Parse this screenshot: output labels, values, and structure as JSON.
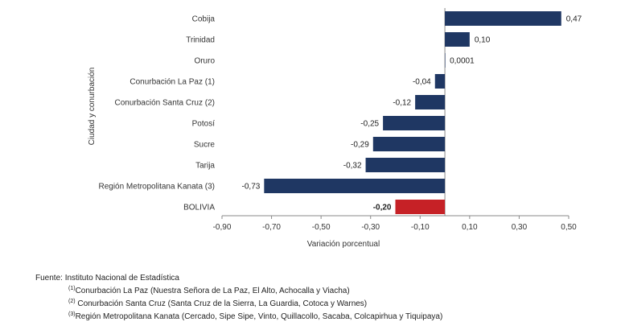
{
  "chart_data": {
    "type": "bar",
    "orientation": "horizontal",
    "categories": [
      "Cobija",
      "Trinidad",
      "Oruro",
      "Conurbación La Paz (1)",
      "Conurbación Santa Cruz (2)",
      "Potosí",
      "Sucre",
      "Tarija",
      "Región Metropolitana Kanata (3)",
      "BOLIVIA"
    ],
    "values": [
      0.47,
      0.1,
      0.0001,
      -0.04,
      -0.12,
      -0.25,
      -0.29,
      -0.32,
      -0.73,
      -0.2
    ],
    "value_labels": [
      "0,47",
      "0,10",
      "0,0001",
      "-0,04",
      "-0,12",
      "-0,25",
      "-0,29",
      "-0,32",
      "-0,73",
      "-0,20"
    ],
    "highlight_index": 9,
    "xlabel": "Variación porcentual",
    "ylabel": "Ciudad y conurbación",
    "xlim": [
      -0.9,
      0.5
    ],
    "xticks": [
      -0.9,
      -0.7,
      -0.5,
      -0.3,
      -0.1,
      0.1,
      0.3,
      0.5
    ],
    "xtick_labels": [
      "-0,90",
      "-0,70",
      "-0,50",
      "-0,30",
      "-0,10",
      "0,10",
      "0,30",
      "0,50"
    ],
    "grid": false,
    "colors": {
      "bar": "#1f3763",
      "highlight": "#c62126",
      "axis": "#8a8a8a"
    }
  },
  "footnotes": {
    "source": "Fuente: Instituto Nacional de Estadística",
    "notes": [
      {
        "mark": "(1)",
        "text": "Conurbación La Paz (Nuestra Señora de La Paz, El Alto, Achocalla y Viacha)"
      },
      {
        "mark": "(2)",
        "text": " Conurbación Santa Cruz (Santa Cruz de la Sierra, La Guardia, Cotoca y Warnes)"
      },
      {
        "mark": "(3)",
        "text": "Región Metropolitana Kanata (Cercado, Sipe Sipe, Vinto, Quillacollo, Sacaba, Colcapirhua y Tiquipaya)"
      }
    ]
  }
}
